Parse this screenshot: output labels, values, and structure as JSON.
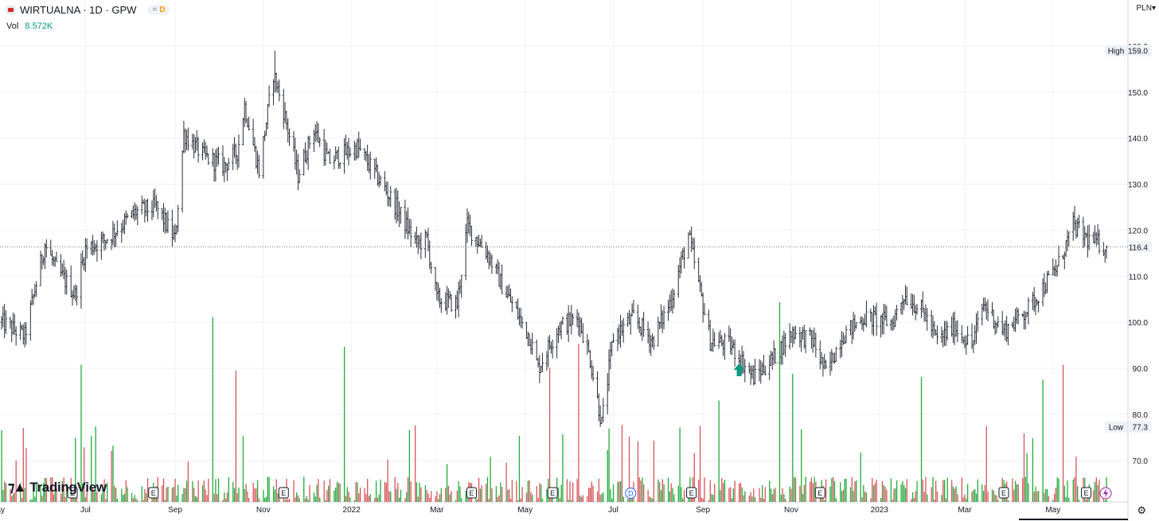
{
  "legend": {
    "symbol_line": "WIRTUALNA · 1D · GPW",
    "badge_eq": "=",
    "badge_d": "D",
    "vol_label": "Vol",
    "vol_value": "8.572K"
  },
  "currency": "PLN▾",
  "brand": "TradingView",
  "settings_icon": "gear-icon",
  "colors": {
    "up": "#26a69a",
    "vol_up": "#22ab3a",
    "vol_down": "#d6545a",
    "bar": "#2a2e39",
    "accent": "#2962ff"
  },
  "chart_data": {
    "type": "ohlc",
    "title": "WIRTUALNA · 1D · GPW",
    "price_axis": {
      "ticks": [
        70,
        80,
        90,
        100,
        110,
        120,
        130,
        140,
        150,
        160
      ],
      "tick_labels": [
        "70.0",
        "80.0",
        "90.0",
        "100.0",
        "110.0",
        "120.0",
        "130.0",
        "140.0",
        "150.0",
        "160.0"
      ],
      "range": [
        61,
        170
      ]
    },
    "time_axis": {
      "labels": [
        "May",
        "Jul",
        "Sep",
        "Nov",
        "2022",
        "Mar",
        "May",
        "Jul",
        "Sep",
        "Nov",
        "2023",
        "Mar",
        "May"
      ],
      "range": [
        "2021-05-04",
        "2023-06-07"
      ]
    },
    "last_price": {
      "value": 116.4,
      "label": "116.4"
    },
    "high": {
      "label": "High",
      "value": 159.0,
      "value_label": "159.0"
    },
    "low": {
      "label": "Low",
      "value": 77.3,
      "value_label": "77.3"
    },
    "price_path": [
      [
        "2021-05-04",
        100
      ],
      [
        "2021-05-20",
        97
      ],
      [
        "2021-06-03",
        117
      ],
      [
        "2021-06-10",
        112
      ],
      [
        "2021-06-24",
        106
      ],
      [
        "2021-07-01",
        116
      ],
      [
        "2021-07-15",
        118
      ],
      [
        "2021-08-05",
        124
      ],
      [
        "2021-08-19",
        125
      ],
      [
        "2021-09-01",
        118
      ],
      [
        "2021-09-07",
        141
      ],
      [
        "2021-09-21",
        136
      ],
      [
        "2021-10-05",
        134
      ],
      [
        "2021-10-14",
        137
      ],
      [
        "2021-10-19",
        147
      ],
      [
        "2021-10-29",
        133
      ],
      [
        "2021-11-08",
        154
      ],
      [
        "2021-11-15",
        146
      ],
      [
        "2021-11-25",
        132
      ],
      [
        "2021-12-06",
        142
      ],
      [
        "2021-12-16",
        135
      ],
      [
        "2022-01-05",
        138
      ],
      [
        "2022-01-20",
        131
      ],
      [
        "2022-02-01",
        125
      ],
      [
        "2022-02-15",
        117
      ],
      [
        "2022-02-22",
        118
      ],
      [
        "2022-03-01",
        105
      ],
      [
        "2022-03-15",
        104
      ],
      [
        "2022-03-22",
        121
      ],
      [
        "2022-04-05",
        115
      ],
      [
        "2022-04-15",
        108
      ],
      [
        "2022-05-04",
        97
      ],
      [
        "2022-05-10",
        90
      ],
      [
        "2022-05-24",
        99
      ],
      [
        "2022-06-07",
        101
      ],
      [
        "2022-06-15",
        92
      ],
      [
        "2022-06-23",
        78
      ],
      [
        "2022-07-01",
        97
      ],
      [
        "2022-07-15",
        101
      ],
      [
        "2022-07-28",
        96
      ],
      [
        "2022-08-10",
        105
      ],
      [
        "2022-08-22",
        119
      ],
      [
        "2022-09-06",
        96
      ],
      [
        "2022-09-20",
        95
      ],
      [
        "2022-10-06",
        88
      ],
      [
        "2022-10-19",
        92
      ],
      [
        "2022-11-02",
        98
      ],
      [
        "2022-11-16",
        96
      ],
      [
        "2022-11-25",
        89
      ],
      [
        "2022-12-06",
        97
      ],
      [
        "2022-12-21",
        101
      ],
      [
        "2023-01-10",
        100
      ],
      [
        "2023-01-18",
        106
      ],
      [
        "2023-02-01",
        102
      ],
      [
        "2023-02-10",
        96
      ],
      [
        "2023-02-22",
        99
      ],
      [
        "2023-03-06",
        95
      ],
      [
        "2023-03-14",
        104
      ],
      [
        "2023-03-28",
        98
      ],
      [
        "2023-04-14",
        103
      ],
      [
        "2023-05-04",
        112
      ],
      [
        "2023-05-15",
        121
      ],
      [
        "2023-05-25",
        118
      ],
      [
        "2023-06-07",
        116.4
      ]
    ],
    "volume_axis": {
      "range": [
        0,
        80
      ]
    },
    "volume_spikes": [
      [
        "2021-09-28",
        62
      ],
      [
        "2021-12-27",
        52
      ],
      [
        "2022-06-09",
        53
      ],
      [
        "2022-10-26",
        67
      ],
      [
        "2022-09-12",
        34
      ],
      [
        "2023-05-10",
        46
      ],
      [
        "2023-04-25",
        41
      ],
      [
        "2022-05-20",
        45
      ],
      [
        "2021-06-28",
        46
      ],
      [
        "2021-10-15",
        44
      ],
      [
        "2023-02-01",
        42
      ],
      [
        "2022-11-04",
        43
      ]
    ],
    "events": [
      {
        "date": "2021-06-22",
        "label": "E"
      },
      {
        "date": "2021-08-17",
        "label": "E"
      },
      {
        "date": "2021-11-15",
        "label": "E"
      },
      {
        "date": "2022-03-25",
        "label": "E"
      },
      {
        "date": "2022-05-20",
        "label": "E"
      },
      {
        "date": "2022-08-24",
        "label": "E"
      },
      {
        "date": "2022-11-21",
        "label": "E"
      },
      {
        "date": "2023-03-28",
        "label": "E"
      },
      {
        "date": "2023-05-24",
        "label": "E"
      }
    ],
    "dividend": {
      "date": "2022-07-13",
      "label": "D"
    },
    "markers": [
      {
        "date": "2022-09-26",
        "type": "up-arrow",
        "price": 89.5
      }
    ],
    "grid": true
  }
}
